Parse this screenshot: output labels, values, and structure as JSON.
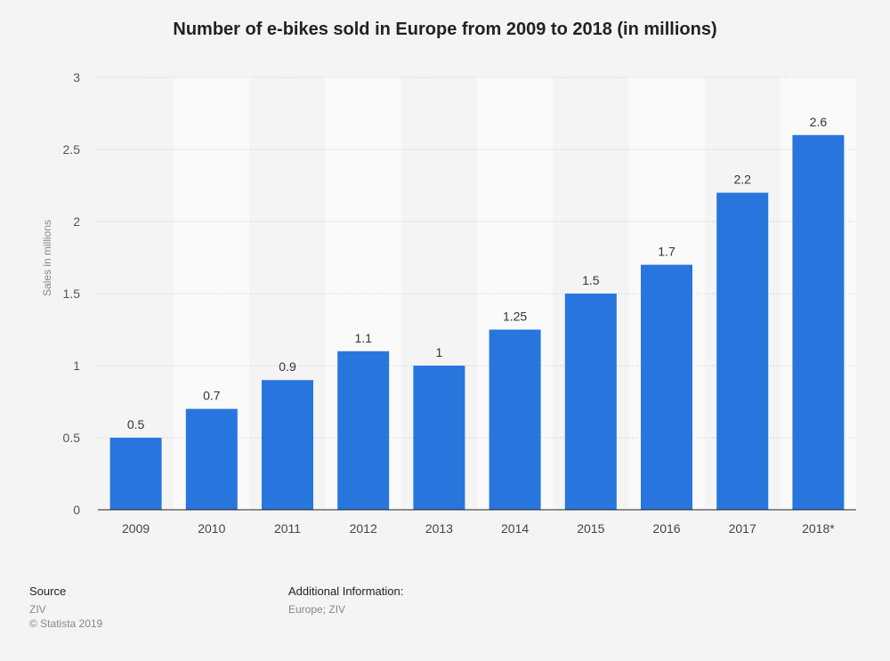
{
  "chart_data": {
    "type": "bar",
    "title": "Number of e-bikes sold in Europe from 2009 to 2018 (in millions)",
    "xlabel": "",
    "ylabel": "Sales in millions",
    "ylim": [
      0,
      3
    ],
    "yticks": [
      0,
      0.5,
      1,
      1.5,
      2,
      2.5,
      3
    ],
    "ytick_labels": [
      "0",
      "0.5",
      "1",
      "1.5",
      "2",
      "2.5",
      "3"
    ],
    "categories": [
      "2009",
      "2010",
      "2011",
      "2012",
      "2013",
      "2014",
      "2015",
      "2016",
      "2017",
      "2018*"
    ],
    "values": [
      0.5,
      0.7,
      0.9,
      1.1,
      1.0,
      1.25,
      1.5,
      1.7,
      2.2,
      2.6
    ],
    "value_labels": [
      "0.5",
      "0.7",
      "0.9",
      "1.1",
      "1",
      "1.25",
      "1.5",
      "1.7",
      "2.2",
      "2.6"
    ],
    "grid": true,
    "legend": "none",
    "bar_color": "#2876dd"
  },
  "footer": {
    "source_heading": "Source",
    "source_lines": [
      "ZIV",
      "© Statista 2019"
    ],
    "info_heading": "Additional Information:",
    "info_lines": [
      "Europe; ZIV"
    ]
  }
}
